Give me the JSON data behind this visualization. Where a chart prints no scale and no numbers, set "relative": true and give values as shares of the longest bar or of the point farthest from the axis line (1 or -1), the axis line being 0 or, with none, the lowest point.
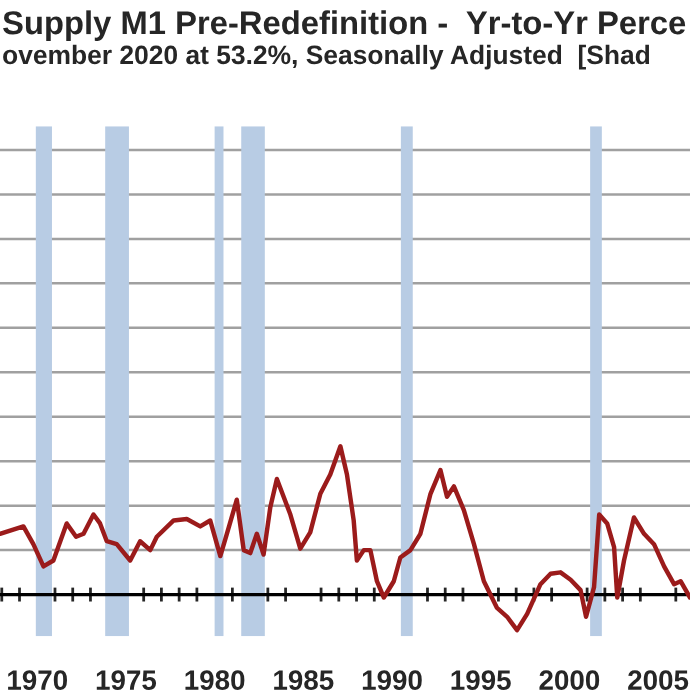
{
  "chart_data": {
    "type": "line",
    "title": "Supply M1 Pre-Redefinition -  Yr-to-Yr Perce",
    "subtitle": "ovember 2020 at 53.2%, Seasonally Adjusted  [Shad",
    "x": [
      1967.9,
      1969.22,
      1969.78,
      1970.35,
      1970.91,
      1971.66,
      1972.19,
      1972.61,
      1973.17,
      1973.54,
      1973.92,
      1974.48,
      1975.24,
      1975.8,
      1976.37,
      1976.74,
      1977.69,
      1978.43,
      1979.19,
      1979.75,
      1980.32,
      1980.69,
      1981.25,
      1981.64,
      1982.01,
      1982.38,
      1982.76,
      1983.14,
      1983.51,
      1984.27,
      1984.83,
      1985.39,
      1985.96,
      1986.52,
      1987.09,
      1987.46,
      1987.84,
      1988.02,
      1988.41,
      1988.78,
      1989.15,
      1989.54,
      1990.1,
      1990.47,
      1991.04,
      1991.6,
      1992.17,
      1992.73,
      1993.1,
      1993.49,
      1994.05,
      1994.62,
      1995.18,
      1995.92,
      1996.49,
      1997.05,
      1997.62,
      1998.37,
      1998.94,
      1999.5,
      2000.07,
      2000.63,
      2000.94,
      2001.39,
      2001.68,
      2002.13,
      2002.52,
      2002.7,
      2003.08,
      2003.64,
      2004.21,
      2004.77,
      2005.34,
      2005.9,
      2006.27,
      2006.8
    ],
    "series": [
      {
        "color": "#9b1b1b",
        "values": [
          0.41,
          0.46,
          0.34,
          0.19,
          0.23,
          0.48,
          0.39,
          0.41,
          0.54,
          0.48,
          0.36,
          0.34,
          0.23,
          0.36,
          0.3,
          0.39,
          0.5,
          0.51,
          0.46,
          0.5,
          0.26,
          0.41,
          0.64,
          0.3,
          0.28,
          0.41,
          0.27,
          0.59,
          0.78,
          0.54,
          0.31,
          0.42,
          0.68,
          0.81,
          1.0,
          0.81,
          0.5,
          0.23,
          0.3,
          0.3,
          0.09,
          -0.02,
          0.09,
          0.25,
          0.3,
          0.41,
          0.68,
          0.84,
          0.66,
          0.73,
          0.57,
          0.34,
          0.09,
          -0.09,
          -0.15,
          -0.24,
          -0.13,
          0.07,
          0.14,
          0.15,
          0.1,
          0.03,
          -0.15,
          0.05,
          0.54,
          0.48,
          0.32,
          -0.02,
          0.23,
          0.52,
          0.41,
          0.34,
          0.19,
          0.07,
          0.09,
          -0.02
        ]
      }
    ],
    "relative": true,
    "xlim": [
      1967.9,
      2006.8
    ],
    "xticks": [
      1970,
      1975,
      1980,
      1985,
      1990,
      1995,
      2000,
      2005
    ],
    "bands": [
      {
        "axis": "x",
        "from": 1969.92,
        "to": 1970.83,
        "color": "#b8cce4"
      },
      {
        "axis": "x",
        "from": 1973.83,
        "to": 1975.17,
        "color": "#b8cce4"
      },
      {
        "axis": "x",
        "from": 1980.0,
        "to": 1980.5,
        "color": "#b8cce4"
      },
      {
        "axis": "x",
        "from": 1981.5,
        "to": 1982.83,
        "color": "#b8cce4"
      },
      {
        "axis": "x",
        "from": 1990.5,
        "to": 1991.17,
        "color": "#b8cce4"
      },
      {
        "axis": "x",
        "from": 2001.17,
        "to": 2001.83,
        "color": "#b8cce4"
      }
    ],
    "grid": "y",
    "tick_labels": "x"
  }
}
